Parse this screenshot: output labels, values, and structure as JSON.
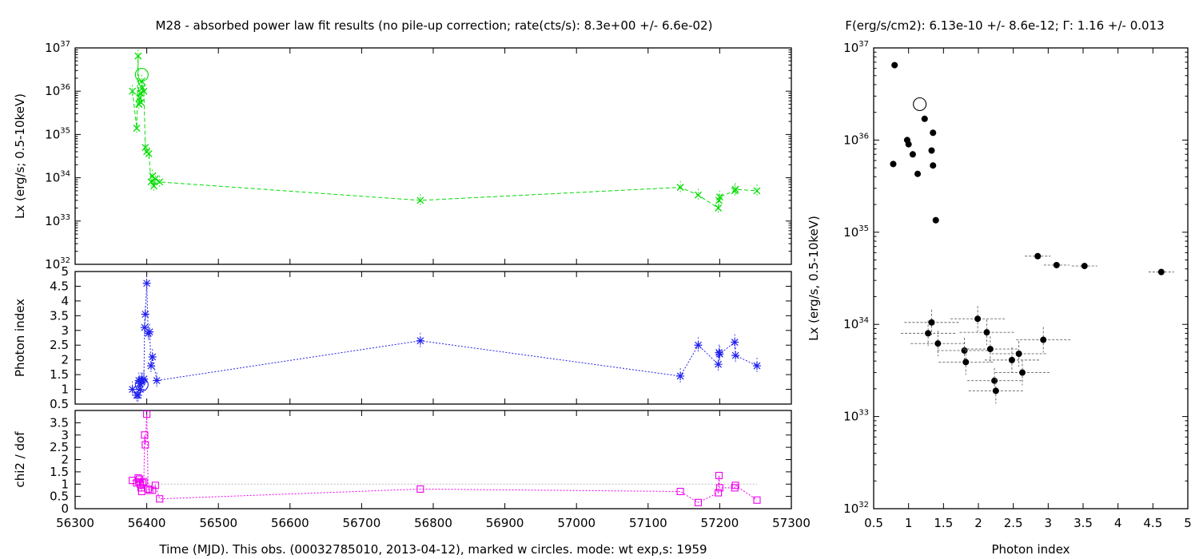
{
  "header": {
    "left_title": "M28  - absorbed power law fit results (no pile-up correction; rate(cts/s): 8.3e+00 +/- 6.6e-02)",
    "right_title": "F(erg/s/cm2): 6.13e-10 +/- 8.6e-12; Γ: 1.16 +/- 0.013"
  },
  "colors": {
    "lx": "#00dd00",
    "photon_index": "#2020ee",
    "chi2": "#ee00ee",
    "scatter": "#000000",
    "errorbars": "#666666",
    "reference_line": "#bbbbbb"
  },
  "chart_data": [
    {
      "id": "lx_vs_time",
      "type": "line",
      "ylabel": "Lx (erg/s; 0.5-10keV)",
      "y_scale": "log",
      "ylim": [
        1e+32,
        1e+37
      ],
      "xlim": [
        56300,
        57300
      ],
      "y_ticks": [
        {
          "base": "10",
          "exp": "32",
          "value": 1e+32
        },
        {
          "base": "10",
          "exp": "33",
          "value": 1e+33
        },
        {
          "base": "10",
          "exp": "34",
          "value": 1e+34
        },
        {
          "base": "10",
          "exp": "35",
          "value": 1e+35
        },
        {
          "base": "10",
          "exp": "36",
          "value": 1e+36
        },
        {
          "base": "10",
          "exp": "37",
          "value": 1e+37
        }
      ],
      "marker": "x-cross",
      "line_style": "dashed",
      "points": [
        {
          "x": 56380,
          "y": 1e+36
        },
        {
          "x": 56386,
          "y": 1.4e+35
        },
        {
          "x": 56388,
          "y": 6.5e+36
        },
        {
          "x": 56389,
          "y": 5e+35
        },
        {
          "x": 56390,
          "y": 7e+35
        },
        {
          "x": 56391,
          "y": 9e+35
        },
        {
          "x": 56392,
          "y": 5.5e+35
        },
        {
          "x": 56393,
          "y": 1.7e+36
        },
        {
          "x": 56394,
          "y": 1.2e+36
        },
        {
          "x": 56396,
          "y": 1e+36
        },
        {
          "x": 56398,
          "y": 5e+34
        },
        {
          "x": 56400,
          "y": 4e+34
        },
        {
          "x": 56403,
          "y": 3.6e+34
        },
        {
          "x": 56406,
          "y": 8e+33
        },
        {
          "x": 56408,
          "y": 1.1e+34
        },
        {
          "x": 56410,
          "y": 6.5e+33
        },
        {
          "x": 56412,
          "y": 9.5e+33
        },
        {
          "x": 56418,
          "y": 8e+33
        },
        {
          "x": 56782,
          "y": 3e+33
        },
        {
          "x": 57145,
          "y": 6e+33
        },
        {
          "x": 57170,
          "y": 4e+33
        },
        {
          "x": 57198,
          "y": 2e+33
        },
        {
          "x": 57199,
          "y": 3e+33
        },
        {
          "x": 57200,
          "y": 3.6e+33
        },
        {
          "x": 57221,
          "y": 5e+33
        },
        {
          "x": 57222,
          "y": 5.4e+33
        },
        {
          "x": 57252,
          "y": 5e+33
        }
      ],
      "highlight": {
        "x": 56393,
        "y": 2.4e+36
      }
    },
    {
      "id": "photon_index_vs_time",
      "type": "line",
      "ylabel": "Photon index",
      "ylim": [
        0.5,
        5
      ],
      "xlim": [
        56300,
        57300
      ],
      "y_ticks": [
        "0.5",
        "1",
        "1.5",
        "2",
        "2.5",
        "3",
        "3.5",
        "4",
        "4.5",
        "5"
      ],
      "marker": "asterisk",
      "line_style": "dotted",
      "points": [
        {
          "x": 56380,
          "y": 1.0
        },
        {
          "x": 56386,
          "y": 0.8
        },
        {
          "x": 56388,
          "y": 0.8
        },
        {
          "x": 56389,
          "y": 1.3
        },
        {
          "x": 56390,
          "y": 1.2
        },
        {
          "x": 56391,
          "y": 1.0
        },
        {
          "x": 56392,
          "y": 1.3
        },
        {
          "x": 56393,
          "y": 1.25
        },
        {
          "x": 56394,
          "y": 1.3
        },
        {
          "x": 56396,
          "y": 1.35
        },
        {
          "x": 56397,
          "y": 3.1
        },
        {
          "x": 56398,
          "y": 3.55
        },
        {
          "x": 56400,
          "y": 4.6
        },
        {
          "x": 56402,
          "y": 2.9
        },
        {
          "x": 56404,
          "y": 2.95
        },
        {
          "x": 56406,
          "y": 1.8
        },
        {
          "x": 56408,
          "y": 2.1
        },
        {
          "x": 56414,
          "y": 1.3
        },
        {
          "x": 56782,
          "y": 2.65
        },
        {
          "x": 57145,
          "y": 1.45
        },
        {
          "x": 57170,
          "y": 2.5
        },
        {
          "x": 57198,
          "y": 1.85
        },
        {
          "x": 57199,
          "y": 2.25
        },
        {
          "x": 57200,
          "y": 2.2
        },
        {
          "x": 57221,
          "y": 2.6
        },
        {
          "x": 57222,
          "y": 2.15
        },
        {
          "x": 57252,
          "y": 1.8
        }
      ],
      "highlight": {
        "x": 56393,
        "y": 1.16
      }
    },
    {
      "id": "chi2_vs_time",
      "type": "line",
      "ylabel": "chi2 / dof",
      "ylim": [
        0,
        4
      ],
      "xlim": [
        56300,
        57300
      ],
      "y_ticks": [
        "0",
        "0.5",
        "1",
        "1.5",
        "2",
        "2.5",
        "3",
        "3.5"
      ],
      "x_ticks": [
        "56300",
        "56400",
        "56500",
        "56600",
        "56700",
        "56800",
        "56900",
        "57000",
        "57100",
        "57200",
        "57300"
      ],
      "xlabel": "Time (MJD). This obs. (00032785010, 2013-04-12), marked w circles. mode: wt exp,s: 1959",
      "marker": "square",
      "line_style": "dotted",
      "reference_y": 1,
      "points": [
        {
          "x": 56380,
          "y": 1.15
        },
        {
          "x": 56386,
          "y": 1.05
        },
        {
          "x": 56388,
          "y": 1.25
        },
        {
          "x": 56389,
          "y": 1.1
        },
        {
          "x": 56390,
          "y": 1.2
        },
        {
          "x": 56391,
          "y": 1.0
        },
        {
          "x": 56392,
          "y": 0.85
        },
        {
          "x": 56393,
          "y": 0.7
        },
        {
          "x": 56394,
          "y": 1.05
        },
        {
          "x": 56396,
          "y": 1.1
        },
        {
          "x": 56397,
          "y": 3.0
        },
        {
          "x": 56398,
          "y": 2.6
        },
        {
          "x": 56400,
          "y": 3.85
        },
        {
          "x": 56402,
          "y": 0.8
        },
        {
          "x": 56404,
          "y": 0.75
        },
        {
          "x": 56408,
          "y": 0.75
        },
        {
          "x": 56412,
          "y": 0.95
        },
        {
          "x": 56418,
          "y": 0.4
        },
        {
          "x": 56782,
          "y": 0.8
        },
        {
          "x": 57145,
          "y": 0.7
        },
        {
          "x": 57170,
          "y": 0.25
        },
        {
          "x": 57198,
          "y": 0.65
        },
        {
          "x": 57199,
          "y": 1.35
        },
        {
          "x": 57200,
          "y": 0.85
        },
        {
          "x": 57221,
          "y": 0.85
        },
        {
          "x": 57222,
          "y": 0.95
        },
        {
          "x": 57252,
          "y": 0.35
        }
      ]
    },
    {
      "id": "lx_vs_photon_index",
      "type": "scatter",
      "xlabel": "Photon index",
      "ylabel": "Lx (erg/s, 0.5-10keV)",
      "y_scale": "log",
      "xlim": [
        0.5,
        5
      ],
      "ylim": [
        1e+32,
        1e+37
      ],
      "x_ticks": [
        "0.5",
        "1",
        "1.5",
        "2",
        "2.5",
        "3",
        "3.5",
        "4",
        "4.5",
        "5"
      ],
      "y_ticks": [
        {
          "base": "10",
          "exp": "32",
          "value": 1e+32
        },
        {
          "base": "10",
          "exp": "33",
          "value": 1e+33
        },
        {
          "base": "10",
          "exp": "34",
          "value": 1e+34
        },
        {
          "base": "10",
          "exp": "35",
          "value": 1e+35
        },
        {
          "base": "10",
          "exp": "36",
          "value": 1e+36
        },
        {
          "base": "10",
          "exp": "37",
          "value": 1e+37
        }
      ],
      "points": [
        {
          "x": 0.8,
          "y": 6.5e+36
        },
        {
          "x": 0.78,
          "y": 5.5e+35
        },
        {
          "x": 0.98,
          "y": 1e+36
        },
        {
          "x": 1.0,
          "y": 9e+35
        },
        {
          "x": 1.06,
          "y": 7e+35
        },
        {
          "x": 1.13,
          "y": 4.3e+35
        },
        {
          "x": 1.23,
          "y": 1.7e+36
        },
        {
          "x": 1.35,
          "y": 1.2e+36
        },
        {
          "x": 1.33,
          "y": 7.7e+35
        },
        {
          "x": 1.35,
          "y": 5.3e+35
        },
        {
          "x": 1.39,
          "y": 1.35e+35
        },
        {
          "x": 2.85,
          "y": 5.5e+34
        },
        {
          "x": 3.12,
          "y": 4.4e+34
        },
        {
          "x": 3.52,
          "y": 4.3e+34
        },
        {
          "x": 4.62,
          "y": 3.7e+34
        },
        {
          "x": 1.33,
          "y": 1.05e+34
        },
        {
          "x": 1.99,
          "y": 1.15e+34
        },
        {
          "x": 1.28,
          "y": 8e+33
        },
        {
          "x": 2.12,
          "y": 8.2e+33
        },
        {
          "x": 2.93,
          "y": 6.8e+33
        },
        {
          "x": 1.42,
          "y": 6.2e+33
        },
        {
          "x": 1.8,
          "y": 5.2e+33
        },
        {
          "x": 2.17,
          "y": 5.4e+33
        },
        {
          "x": 2.58,
          "y": 4.8e+33
        },
        {
          "x": 1.82,
          "y": 3.9e+33
        },
        {
          "x": 2.48,
          "y": 4.1e+33
        },
        {
          "x": 2.63,
          "y": 3e+33
        },
        {
          "x": 2.23,
          "y": 2.45e+33
        },
        {
          "x": 2.25,
          "y": 1.9e+33
        }
      ],
      "highlight": {
        "x": 1.16,
        "y": 2.45e+36
      }
    }
  ]
}
